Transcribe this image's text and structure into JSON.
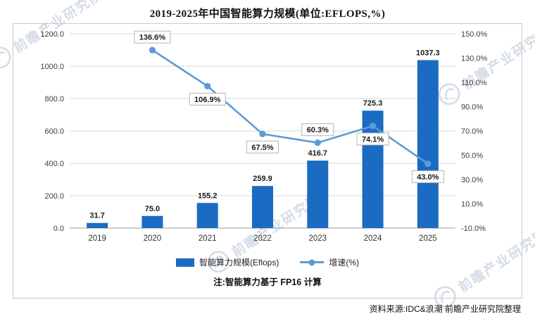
{
  "title": "2019-2025年中国智能算力规模(单位:EFLOPS,%)",
  "chart_data": {
    "type": "bar+line",
    "categories": [
      "2019",
      "2020",
      "2021",
      "2022",
      "2023",
      "2024",
      "2025"
    ],
    "series": [
      {
        "name": "智能算力规模(Eflops)",
        "type": "bar",
        "color": "#1b6bc2",
        "values": [
          31.7,
          75.0,
          155.2,
          259.9,
          416.7,
          725.3,
          1037.3
        ],
        "labels": [
          "31.7",
          "75.0",
          "155.2",
          "259.9",
          "416.7",
          "725.3",
          "1037.3"
        ]
      },
      {
        "name": "增速(%)",
        "type": "line",
        "color": "#5b9bd5",
        "values": [
          null,
          136.6,
          106.9,
          67.5,
          60.3,
          74.1,
          43.0
        ],
        "labels": [
          null,
          "136.6%",
          "106.9%",
          "67.5%",
          "60.3%",
          "74.1%",
          "43.0%"
        ]
      }
    ],
    "left_axis": {
      "min": 0,
      "max": 1200,
      "step": 200,
      "labels": [
        "0.0",
        "200.0",
        "400.0",
        "600.0",
        "800.0",
        "1000.0",
        "1200.0"
      ]
    },
    "right_axis": {
      "min": -10,
      "max": 150,
      "step": 20,
      "labels": [
        "-10.0%",
        "10.0%",
        "30.0%",
        "50.0%",
        "70.0%",
        "90.0%",
        "110.0%",
        "130.0%",
        "150.0%"
      ]
    },
    "grid": true,
    "legend_position": "bottom"
  },
  "note": "注:智能算力基于 FP16 计算",
  "source": "资料来源:IDC&浪潮 前瞻产业研究院整理",
  "watermark_text": "前瞻产业研究院",
  "colors": {
    "bar": "#1b6bc2",
    "line": "#5b9bd5",
    "grid": "#dadada",
    "axis_line": "#9b9b9b",
    "frame_border": "#c9c9c9",
    "label_box_border": "#b3b3b3",
    "tick_text": "#3d3d3d",
    "watermark": "#8fa6c2"
  }
}
